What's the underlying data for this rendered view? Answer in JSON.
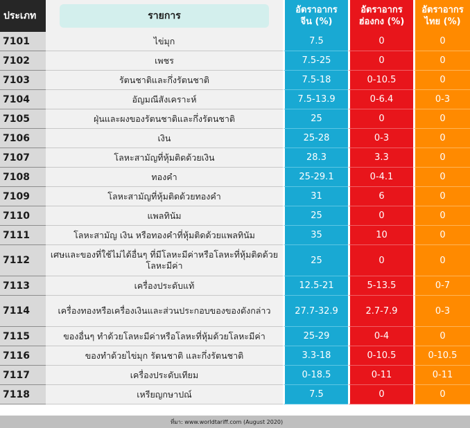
{
  "header": {
    "code": "ประเภท",
    "name": "รายการ",
    "china": [
      "อัตราอากร",
      "จีน (%)"
    ],
    "hongkong": [
      "อัตราอากร",
      "ฮ่องกง (%)"
    ],
    "thailand": [
      "อัตราอากร",
      "ไทย (%)"
    ]
  },
  "rows": [
    {
      "code": "7101",
      "name": "ไข่มุก",
      "china": "7.5",
      "hongkong": "0",
      "thailand": "0"
    },
    {
      "code": "7102",
      "name": "เพชร",
      "china": "7.5-25",
      "hongkong": "0",
      "thailand": "0"
    },
    {
      "code": "7103",
      "name": "รัตนชาติและกึ่งรัตนชาติ",
      "china": "7.5-18",
      "hongkong": "0-10.5",
      "thailand": "0"
    },
    {
      "code": "7104",
      "name": "อัญมณีสังเคราะห์",
      "china": "7.5-13.9",
      "hongkong": "0-6.4",
      "thailand": "0-3"
    },
    {
      "code": "7105",
      "name": "ฝุ่นและผงของรัตนชาติและกึ่งรัตนชาติ",
      "china": "25",
      "hongkong": "0",
      "thailand": "0"
    },
    {
      "code": "7106",
      "name": "เงิน",
      "china": "25-28",
      "hongkong": "0-3",
      "thailand": "0"
    },
    {
      "code": "7107",
      "name": "โลหะสามัญที่หุ้มติดด้วยเงิน",
      "china": "28.3",
      "hongkong": "3.3",
      "thailand": "0"
    },
    {
      "code": "7108",
      "name": "ทองคำ",
      "china": "25-29.1",
      "hongkong": "0-4.1",
      "thailand": "0"
    },
    {
      "code": "7109",
      "name": "โลหะสามัญที่หุ้มติดด้วยทองคำ",
      "china": "31",
      "hongkong": "6",
      "thailand": "0"
    },
    {
      "code": "7110",
      "name": "แพลทินัม",
      "china": "25",
      "hongkong": "0",
      "thailand": "0"
    },
    {
      "code": "7111",
      "name": "โลหะสามัญ เงิน หรือทองคำที่หุ้มติดด้วยแพลทินัม",
      "china": "35",
      "hongkong": "10",
      "thailand": "0"
    },
    {
      "code": "7112",
      "name": "เศษและของที่ใช้ไม่ได้อื่นๆ ที่มีโลหะมีค่าหรือโลหะที่หุ้มติดด้วยโลหะมีค่า",
      "china": "25",
      "hongkong": "0",
      "thailand": "0",
      "tall": true
    },
    {
      "code": "7113",
      "name": "เครื่องประดับแท้",
      "china": "12.5-21",
      "hongkong": "5-13.5",
      "thailand": "0-7"
    },
    {
      "code": "7114",
      "name": "เครื่องทองหรือเครื่องเงินและส่วนประกอบของของดังกล่าว",
      "china": "27.7-32.9",
      "hongkong": "2.7-7.9",
      "thailand": "0-3",
      "tall": true
    },
    {
      "code": "7115",
      "name": "ของอื่นๆ ทำด้วยโลหะมีค่าหรือโลหะที่หุ้มด้วยโลหะมีค่า",
      "china": "25-29",
      "hongkong": "0-4",
      "thailand": "0"
    },
    {
      "code": "7116",
      "name": "ของทำด้วยไข่มุก รัตนชาติ และกึ่งรัตนชาติ",
      "china": "3.3-18",
      "hongkong": "0-10.5",
      "thailand": "0-10.5"
    },
    {
      "code": "7117",
      "name": "เครื่องประดับเทียม",
      "china": "0-18.5",
      "hongkong": "0-11",
      "thailand": "0-11"
    },
    {
      "code": "7118",
      "name": "เหรียญกษาปณ์",
      "china": "7.5",
      "hongkong": "0",
      "thailand": "0"
    }
  ],
  "footer": {
    "source": "ที่มา: www.worldtariff.com (August 2020)"
  },
  "colors": {
    "china": "#19a9d3",
    "hongkong": "#e8151b",
    "thailand": "#ff8a00"
  }
}
